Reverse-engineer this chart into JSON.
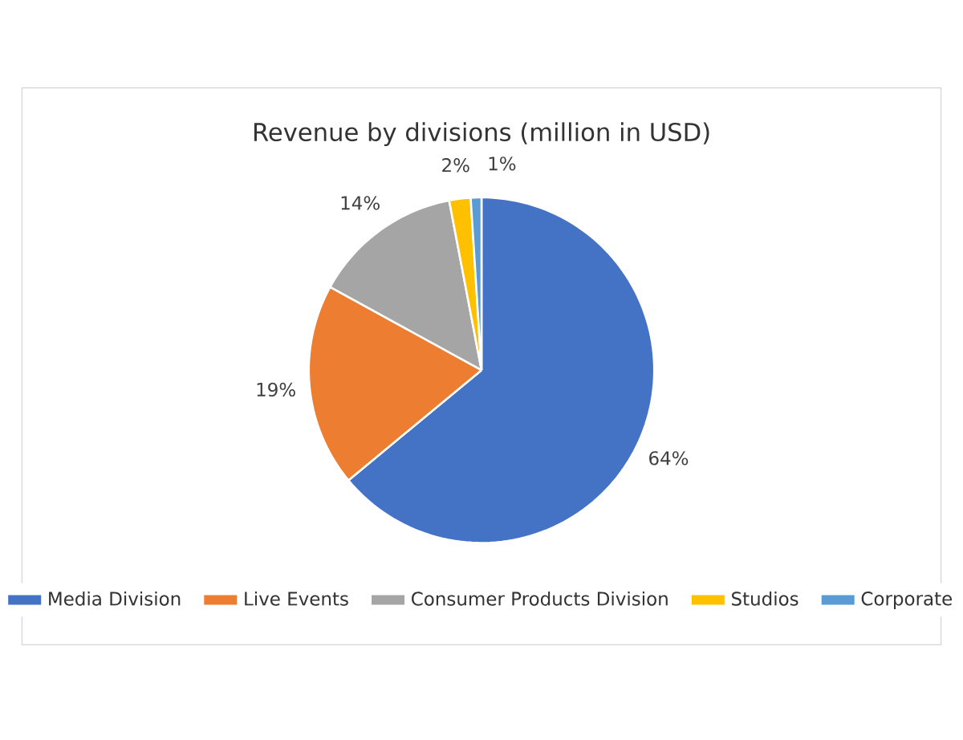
{
  "chart_data": {
    "type": "pie",
    "title": "Revenue  by divisions (million in USD)",
    "categories": [
      "Media Division",
      "Live Events",
      "Consumer Products Division",
      "Studios",
      "Corporate"
    ],
    "values": [
      64,
      19,
      14,
      2,
      1
    ],
    "value_labels": [
      "64%",
      "19%",
      "14%",
      "2%",
      "1%"
    ],
    "colors": [
      "#4472c4",
      "#ed7d31",
      "#a5a5a5",
      "#ffc000",
      "#5b9bd5"
    ],
    "legend": "bottom"
  }
}
